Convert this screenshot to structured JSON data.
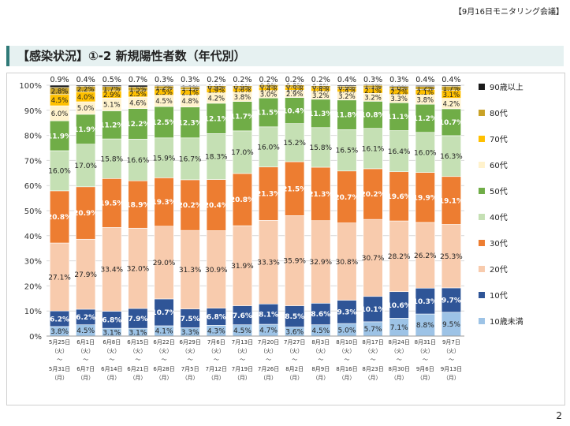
{
  "header": {
    "meeting_tag": "【9月16日モニタリング会議】",
    "page_number": "2"
  },
  "slide": {
    "title": "【感染状況】①-2 新規陽性者数（年代別）"
  },
  "chart_data": {
    "type": "bar",
    "stacked": true,
    "percent": true,
    "ylim": [
      0,
      100
    ],
    "yticks": [
      "0%",
      "10%",
      "20%",
      "30%",
      "40%",
      "50%",
      "60%",
      "70%",
      "80%",
      "90%",
      "100%"
    ],
    "categories": [
      {
        "start": "5月25日",
        "start_day": "（火）",
        "end": "5月31日",
        "end_day": "（月）"
      },
      {
        "start": "6月1日",
        "start_day": "（火）",
        "end": "6月7日",
        "end_day": "（月）"
      },
      {
        "start": "6月8日",
        "start_day": "（火）",
        "end": "6月14日",
        "end_day": "（月）"
      },
      {
        "start": "6月15日",
        "start_day": "（火）",
        "end": "6月21日",
        "end_day": "（月）"
      },
      {
        "start": "6月22日",
        "start_day": "（火）",
        "end": "6月28日",
        "end_day": "（月）"
      },
      {
        "start": "6月29日",
        "start_day": "（火）",
        "end": "7月5日",
        "end_day": "（月）"
      },
      {
        "start": "7月6日",
        "start_day": "（火）",
        "end": "7月12日",
        "end_day": "（月）"
      },
      {
        "start": "7月13日",
        "start_day": "（火）",
        "end": "7月19日",
        "end_day": "（月）"
      },
      {
        "start": "7月20日",
        "start_day": "（火）",
        "end": "7月26日",
        "end_day": "（月）"
      },
      {
        "start": "7月27日",
        "start_day": "（火）",
        "end": "8月2日",
        "end_day": "（月）"
      },
      {
        "start": "8月3日",
        "start_day": "（火）",
        "end": "8月9日",
        "end_day": "（月）"
      },
      {
        "start": "8月10日",
        "start_day": "（火）",
        "end": "8月16日",
        "end_day": "（月）"
      },
      {
        "start": "8月17日",
        "start_day": "（火）",
        "end": "8月23日",
        "end_day": "（月）"
      },
      {
        "start": "8月24日",
        "start_day": "（火）",
        "end": "8月30日",
        "end_day": "（月）"
      },
      {
        "start": "8月31日",
        "start_day": "（火）",
        "end": "9月6日",
        "end_day": "（月）"
      },
      {
        "start": "9月7日",
        "start_day": "（火）",
        "end": "9月13日",
        "end_day": "（月）"
      }
    ],
    "series": [
      {
        "name": "10歳未満",
        "color": "#9dc3e6",
        "values": [
          3.8,
          4.5,
          3.1,
          3.1,
          4.1,
          3.3,
          4.3,
          4.5,
          4.7,
          3.6,
          4.5,
          5.0,
          5.7,
          7.1,
          8.8,
          9.5
        ],
        "labels": [
          "3.8%",
          "4.5%",
          "3.1%",
          "3.1%",
          "4.1%",
          "3.3%",
          "4.3%",
          "4.5%",
          "4.7%",
          "3.6%",
          "4.5%",
          "5.0%",
          "5.7%",
          "7.1%",
          "8.8%",
          "9.5%"
        ]
      },
      {
        "name": "10代",
        "color": "#2f5597",
        "values": [
          6.2,
          6.2,
          6.8,
          7.9,
          10.7,
          7.5,
          6.8,
          7.6,
          8.1,
          8.5,
          8.6,
          9.3,
          10.1,
          10.6,
          10.3,
          9.7
        ],
        "labels": [
          "6.2%",
          "6.2%",
          "6.8%",
          "7.9%",
          "10.7%",
          "7.5%",
          "6.8%",
          "7.6%",
          "8.1%",
          "8.5%",
          "8.6%",
          "9.3%",
          "10.1%",
          "10.6%",
          "10.3%",
          "9.7%"
        ]
      },
      {
        "name": "20代",
        "color": "#f8cbad",
        "values": [
          27.1,
          27.9,
          33.4,
          32.0,
          29.0,
          31.3,
          30.9,
          31.9,
          33.3,
          35.9,
          32.9,
          30.8,
          30.7,
          28.2,
          26.2,
          25.3
        ],
        "labels": [
          "27.1%",
          "27.9%",
          "33.4%",
          "32.0%",
          "29.0%",
          "31.3%",
          "30.9%",
          "31.9%",
          "33.3%",
          "35.9%",
          "32.9%",
          "30.8%",
          "30.7%",
          "28.2%",
          "26.2%",
          "25.3%"
        ]
      },
      {
        "name": "30代",
        "color": "#ed7d31",
        "values": [
          20.8,
          20.9,
          19.5,
          18.9,
          19.3,
          20.2,
          20.4,
          20.8,
          21.3,
          21.5,
          21.3,
          20.7,
          20.2,
          19.6,
          19.9,
          19.1
        ],
        "labels": [
          "20.8%",
          "20.9%",
          "19.5%",
          "18.9%",
          "19.3%",
          "20.2%",
          "20.4%",
          "20.8%",
          "21.3%",
          "21.5%",
          "21.3%",
          "20.7%",
          "20.2%",
          "19.6%",
          "19.9%",
          "19.1%"
        ]
      },
      {
        "name": "40代",
        "color": "#c5e0b4",
        "values": [
          16.0,
          17.0,
          15.8,
          16.6,
          15.9,
          16.7,
          18.3,
          17.0,
          16.0,
          15.2,
          15.8,
          16.5,
          16.1,
          16.4,
          16.0,
          16.3
        ],
        "labels": [
          "16.0%",
          "17.0%",
          "15.8%",
          "16.6%",
          "15.9%",
          "16.7%",
          "18.3%",
          "17.0%",
          "16.0%",
          "15.2%",
          "15.8%",
          "16.5%",
          "16.1%",
          "16.4%",
          "16.0%",
          "16.3%"
        ]
      },
      {
        "name": "50代",
        "color": "#70ad47",
        "values": [
          11.9,
          11.9,
          11.2,
          12.2,
          12.5,
          12.3,
          12.1,
          11.7,
          11.5,
          10.4,
          11.3,
          11.8,
          10.8,
          11.1,
          11.2,
          10.7
        ],
        "labels": [
          "11.9%",
          "11.9%",
          "11.2%",
          "12.2%",
          "12.5%",
          "12.3%",
          "12.1%",
          "11.7%",
          "11.5%",
          "10.4%",
          "11.3%",
          "11.8%",
          "10.8%",
          "11.1%",
          "11.2%",
          "10.7%"
        ]
      },
      {
        "name": "60代",
        "color": "#fff2cc",
        "values": [
          6.0,
          5.0,
          5.1,
          4.6,
          4.5,
          4.8,
          4.2,
          3.8,
          3.0,
          2.9,
          3.2,
          3.2,
          3.2,
          3.3,
          3.8,
          4.2
        ],
        "labels": [
          "6.0%",
          "5.0%",
          "5.1%",
          "4.6%",
          "4.5%",
          "4.8%",
          "4.2%",
          "3.8%",
          "3.0%",
          "2.9%",
          "3.2%",
          "3.2%",
          "3.2%",
          "3.3%",
          "3.8%",
          "4.2%"
        ]
      },
      {
        "name": "70代",
        "color": "#ffc000",
        "values": [
          4.5,
          4.0,
          2.9,
          2.5,
          2.5,
          2.1,
          1.9,
          1.6,
          1.4,
          1.3,
          1.4,
          1.4,
          2.1,
          2.2,
          2.1,
          3.1
        ],
        "labels": [
          "4.5%",
          "4.0%",
          "2.9%",
          "2.5%",
          "2.5%",
          "2.1%",
          "1.9%",
          "1.6%",
          "1.4%",
          "1.3%",
          "1.4%",
          "1.4%",
          "2.1%",
          "2.2%",
          "2.1%",
          "3.1%"
        ]
      },
      {
        "name": "80代",
        "color": "#c9a227",
        "values": [
          2.8,
          2.2,
          1.7,
          1.5,
          1.2,
          1.1,
          0.9,
          0.9,
          0.9,
          0.8,
          0.8,
          0.9,
          1.1,
          1.0,
          1.2,
          1.7
        ],
        "labels": [
          "2.8%",
          "2.2%",
          "1.7%",
          "1.5%",
          "1.2%",
          "1.1%",
          "0.9%",
          "0.9%",
          "0.9%",
          "0.8%",
          "0.8%",
          "0.9%",
          "1.1%",
          "1.0%",
          "1.2%",
          "1.7%"
        ]
      },
      {
        "name": "90歳以上",
        "color": "#1a1a1a",
        "values": [
          0.9,
          0.4,
          0.5,
          0.7,
          0.3,
          0.3,
          0.2,
          0.2,
          0.2,
          0.2,
          0.2,
          0.4,
          0.3,
          0.3,
          0.4,
          0.4
        ],
        "labels": [
          "0.9%",
          "0.4%",
          "0.5%",
          "0.7%",
          "0.3%",
          "0.3%",
          "0.2%",
          "0.2%",
          "0.2%",
          "0.2%",
          "0.2%",
          "0.4%",
          "0.3%",
          "0.3%",
          "0.4%",
          "0.4%"
        ]
      }
    ],
    "legend_order": [
      "90歳以上",
      "80代",
      "70代",
      "60代",
      "50代",
      "40代",
      "30代",
      "20代",
      "10代",
      "10歳未満"
    ],
    "legend_position": "right"
  }
}
